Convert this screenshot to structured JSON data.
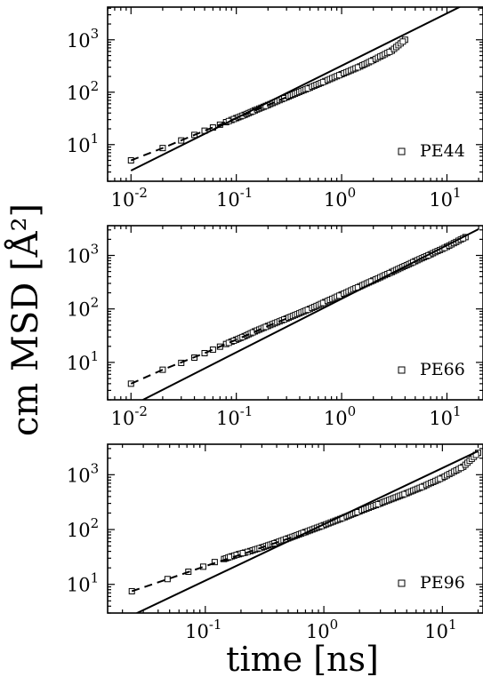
{
  "figure": {
    "ylabel": "cm MSD [Å²]",
    "xlabel": "time [ns]"
  },
  "chart_data": [
    {
      "type": "scatter",
      "scale": "log-log",
      "legend": {
        "label": "PE44",
        "placement": "bottom-right",
        "marker": "open-square"
      },
      "xlim": [
        0.006,
        22
      ],
      "ylim": [
        2,
        4200
      ],
      "xticks": [
        {
          "value": 0.01,
          "mant": "10",
          "exp": "-2"
        },
        {
          "value": 0.1,
          "mant": "10",
          "exp": "-1"
        },
        {
          "value": 1,
          "mant": "10",
          "exp": "0"
        },
        {
          "value": 10,
          "mant": "10",
          "exp": "1"
        }
      ],
      "yticks": [
        {
          "value": 10,
          "mant": "10",
          "exp": "1"
        },
        {
          "value": 100,
          "mant": "10",
          "exp": "2"
        },
        {
          "value": 1000,
          "mant": "10",
          "exp": "3"
        }
      ],
      "series": [
        {
          "kind": "markers",
          "x": [
            0.01,
            0.02,
            0.03,
            0.04,
            0.05,
            0.06,
            0.07,
            0.08,
            0.09,
            0.1,
            0.12,
            0.15,
            0.2,
            0.3,
            0.5,
            0.7,
            1.0,
            1.5,
            2.0,
            3.0,
            4.0
          ],
          "y": [
            5.0,
            8.6,
            12.0,
            15.3,
            18.4,
            21.2,
            24.0,
            26.8,
            29.5,
            32.0,
            37,
            45,
            57,
            80,
            122,
            163,
            220,
            310,
            410,
            620,
            1000
          ]
        },
        {
          "kind": "dashed-fit",
          "x": [
            0.01,
            0.02,
            0.05,
            0.1,
            0.2,
            0.3
          ],
          "y": [
            5.0,
            8.6,
            18.4,
            32.0,
            57,
            80
          ]
        },
        {
          "kind": "solid-line",
          "x": [
            0.01,
            20
          ],
          "y": [
            3.2,
            6400
          ]
        }
      ]
    },
    {
      "type": "scatter",
      "scale": "log-log",
      "legend": {
        "label": "PE66",
        "placement": "bottom-right",
        "marker": "open-square"
      },
      "xlim": [
        0.006,
        22
      ],
      "ylim": [
        2,
        3600
      ],
      "xticks": [
        {
          "value": 0.01,
          "mant": "10",
          "exp": "-2"
        },
        {
          "value": 0.1,
          "mant": "10",
          "exp": "-1"
        },
        {
          "value": 1,
          "mant": "10",
          "exp": "0"
        },
        {
          "value": 10,
          "mant": "10",
          "exp": "1"
        }
      ],
      "yticks": [
        {
          "value": 10,
          "mant": "10",
          "exp": "1"
        },
        {
          "value": 100,
          "mant": "10",
          "exp": "2"
        },
        {
          "value": 1000,
          "mant": "10",
          "exp": "3"
        }
      ],
      "series": [
        {
          "kind": "markers",
          "x": [
            0.01,
            0.02,
            0.03,
            0.04,
            0.05,
            0.06,
            0.07,
            0.08,
            0.09,
            0.1,
            0.12,
            0.15,
            0.2,
            0.3,
            0.5,
            0.7,
            1.0,
            1.5,
            2.0,
            3.0,
            5.0,
            7.0,
            10,
            15
          ],
          "y": [
            4.0,
            7.3,
            9.8,
            12.3,
            14.9,
            17.3,
            19.7,
            22.1,
            24.4,
            26.6,
            31,
            38,
            48,
            66,
            100,
            135,
            185,
            265,
            340,
            490,
            780,
            1050,
            1450,
            2200
          ]
        },
        {
          "kind": "dashed-fit",
          "x": [
            0.01,
            0.02,
            0.05,
            0.1,
            0.2,
            0.3
          ],
          "y": [
            4.0,
            7.3,
            14.9,
            26.6,
            48,
            66
          ]
        },
        {
          "kind": "solid-line",
          "x": [
            0.013,
            20
          ],
          "y": [
            2.0,
            3100
          ]
        }
      ]
    },
    {
      "type": "scatter",
      "scale": "log-log",
      "legend": {
        "label": "PE96",
        "placement": "bottom-right",
        "marker": "open-square"
      },
      "xlim": [
        0.015,
        22
      ],
      "ylim": [
        3,
        3600
      ],
      "xticks": [
        {
          "value": 0.1,
          "mant": "10",
          "exp": "-1"
        },
        {
          "value": 1,
          "mant": "10",
          "exp": "0"
        },
        {
          "value": 10,
          "mant": "10",
          "exp": "1"
        }
      ],
      "yticks": [
        {
          "value": 10,
          "mant": "10",
          "exp": "1"
        },
        {
          "value": 100,
          "mant": "10",
          "exp": "2"
        },
        {
          "value": 1000,
          "mant": "10",
          "exp": "3"
        }
      ],
      "series": [
        {
          "kind": "markers",
          "x": [
            0.024,
            0.048,
            0.072,
            0.096,
            0.12,
            0.144,
            0.168,
            0.192,
            0.216,
            0.24,
            0.3,
            0.4,
            0.5,
            0.7,
            1.0,
            1.5,
            2.0,
            3.0,
            5.0,
            7.0,
            10,
            15,
            20
          ],
          "y": [
            7.5,
            12.5,
            17.0,
            21.0,
            25.5,
            29.0,
            32.5,
            35.5,
            38.0,
            40.5,
            47,
            58,
            69,
            90,
            120,
            168,
            215,
            300,
            460,
            620,
            880,
            1400,
            2500
          ]
        },
        {
          "kind": "dashed-fit",
          "x": [
            0.024,
            0.05,
            0.1,
            0.2,
            0.4,
            0.6
          ],
          "y": [
            7.5,
            12.8,
            21.5,
            35,
            58,
            78
          ]
        },
        {
          "kind": "solid-line",
          "x": [
            0.024,
            20
          ],
          "y": [
            2.7,
            2700
          ]
        }
      ]
    }
  ]
}
